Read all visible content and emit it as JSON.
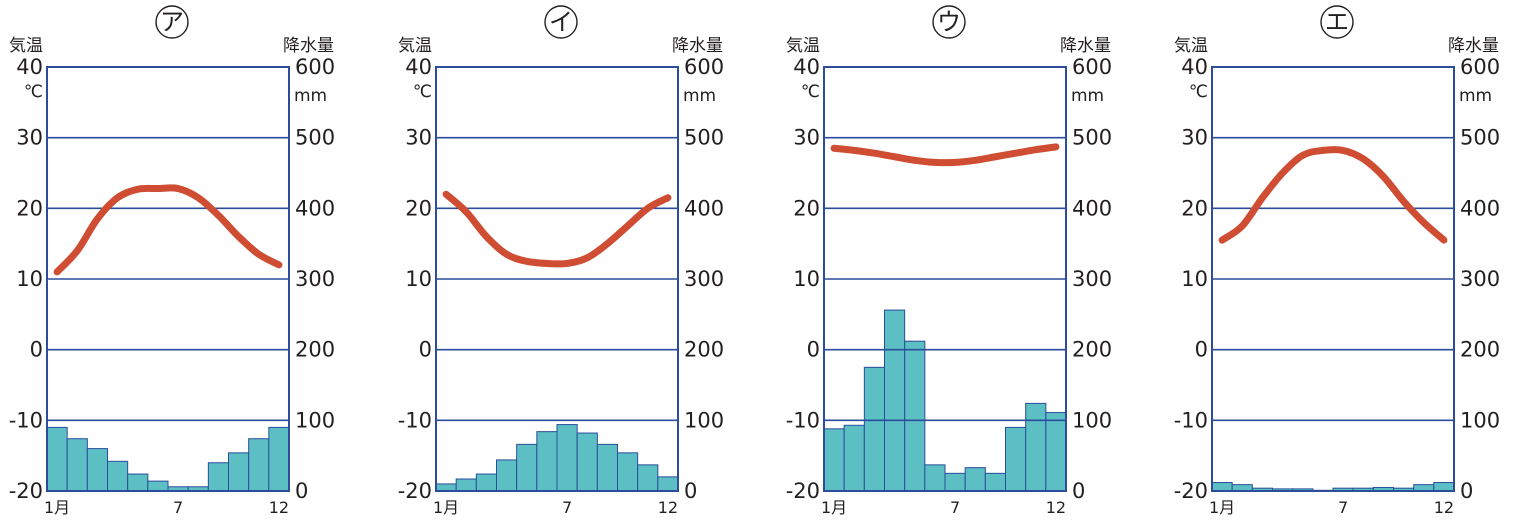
{
  "colors": {
    "frame": "#2b4d9c",
    "gridline": "#2b4d9c",
    "temperature_line": "#cf4d32",
    "precipitation_bar": "#5bbfc3",
    "bar_outline": "#2b4d9c",
    "text": "#231f20"
  },
  "chart_data": [
    {
      "type": "bar+line",
      "title": "ア",
      "left_axis_label": "気温",
      "right_axis_label": "降水量",
      "left_unit": "℃",
      "right_unit": "mm",
      "left_ticks": [
        "40",
        "30",
        "20",
        "10",
        "0",
        "-10",
        "-20"
      ],
      "right_ticks": [
        "600",
        "500",
        "400",
        "300",
        "200",
        "100",
        "0"
      ],
      "month_labels": [
        "1月",
        "7",
        "12"
      ],
      "ylim_temperature": [
        -20,
        40
      ],
      "ylim_precipitation": [
        0,
        600
      ],
      "months": [
        1,
        2,
        3,
        4,
        5,
        6,
        7,
        8,
        9,
        10,
        11,
        12
      ],
      "temperature": [
        11,
        14,
        18.5,
        21.5,
        22.7,
        22.8,
        22.8,
        21.5,
        19,
        16,
        13.5,
        12
      ],
      "precipitation": [
        90,
        74,
        60,
        42,
        24,
        14,
        6,
        6,
        40,
        54,
        74,
        90
      ]
    },
    {
      "type": "bar+line",
      "title": "イ",
      "left_axis_label": "気温",
      "right_axis_label": "降水量",
      "left_unit": "℃",
      "right_unit": "mm",
      "left_ticks": [
        "40",
        "30",
        "20",
        "10",
        "0",
        "-10",
        "-20"
      ],
      "right_ticks": [
        "600",
        "500",
        "400",
        "300",
        "200",
        "100",
        "0"
      ],
      "month_labels": [
        "1月",
        "7",
        "12"
      ],
      "ylim_temperature": [
        -20,
        40
      ],
      "ylim_precipitation": [
        0,
        600
      ],
      "months": [
        1,
        2,
        3,
        4,
        5,
        6,
        7,
        8,
        9,
        10,
        11,
        12
      ],
      "temperature": [
        22,
        19.5,
        16,
        13.5,
        12.5,
        12.2,
        12.2,
        13,
        15,
        17.5,
        20,
        21.5
      ],
      "precipitation": [
        10,
        17,
        24,
        44,
        66,
        84,
        94,
        82,
        66,
        54,
        37,
        20
      ]
    },
    {
      "type": "bar+line",
      "title": "ウ",
      "left_axis_label": "気温",
      "right_axis_label": "降水量",
      "left_unit": "℃",
      "right_unit": "mm",
      "left_ticks": [
        "40",
        "30",
        "20",
        "10",
        "0",
        "-10",
        "-20"
      ],
      "right_ticks": [
        "600",
        "500",
        "400",
        "300",
        "200",
        "100",
        "0"
      ],
      "month_labels": [
        "1月",
        "7",
        "12"
      ],
      "ylim_temperature": [
        -20,
        40
      ],
      "ylim_precipitation": [
        0,
        600
      ],
      "months": [
        1,
        2,
        3,
        4,
        5,
        6,
        7,
        8,
        9,
        10,
        11,
        12
      ],
      "temperature": [
        28.5,
        28.2,
        27.8,
        27.3,
        26.8,
        26.5,
        26.5,
        26.8,
        27.3,
        27.8,
        28.3,
        28.7
      ],
      "precipitation": [
        88,
        93,
        175,
        256,
        212,
        37,
        25,
        33,
        25,
        90,
        124,
        111
      ]
    },
    {
      "type": "bar+line",
      "title": "エ",
      "left_axis_label": "気温",
      "right_axis_label": "降水量",
      "left_unit": "℃",
      "right_unit": "mm",
      "left_ticks": [
        "40",
        "30",
        "20",
        "10",
        "0",
        "-10",
        "-20"
      ],
      "right_ticks": [
        "600",
        "500",
        "400",
        "300",
        "200",
        "100",
        "0"
      ],
      "month_labels": [
        "1月",
        "7",
        "12"
      ],
      "ylim_temperature": [
        -20,
        40
      ],
      "ylim_precipitation": [
        0,
        600
      ],
      "months": [
        1,
        2,
        3,
        4,
        5,
        6,
        7,
        8,
        9,
        10,
        11,
        12
      ],
      "temperature": [
        15.5,
        17.5,
        21.5,
        25,
        27.5,
        28.2,
        28.2,
        27,
        24.5,
        21,
        18,
        15.5
      ],
      "precipitation": [
        12,
        9,
        4,
        3,
        3,
        1,
        4,
        4,
        5,
        4,
        9,
        12
      ]
    }
  ]
}
